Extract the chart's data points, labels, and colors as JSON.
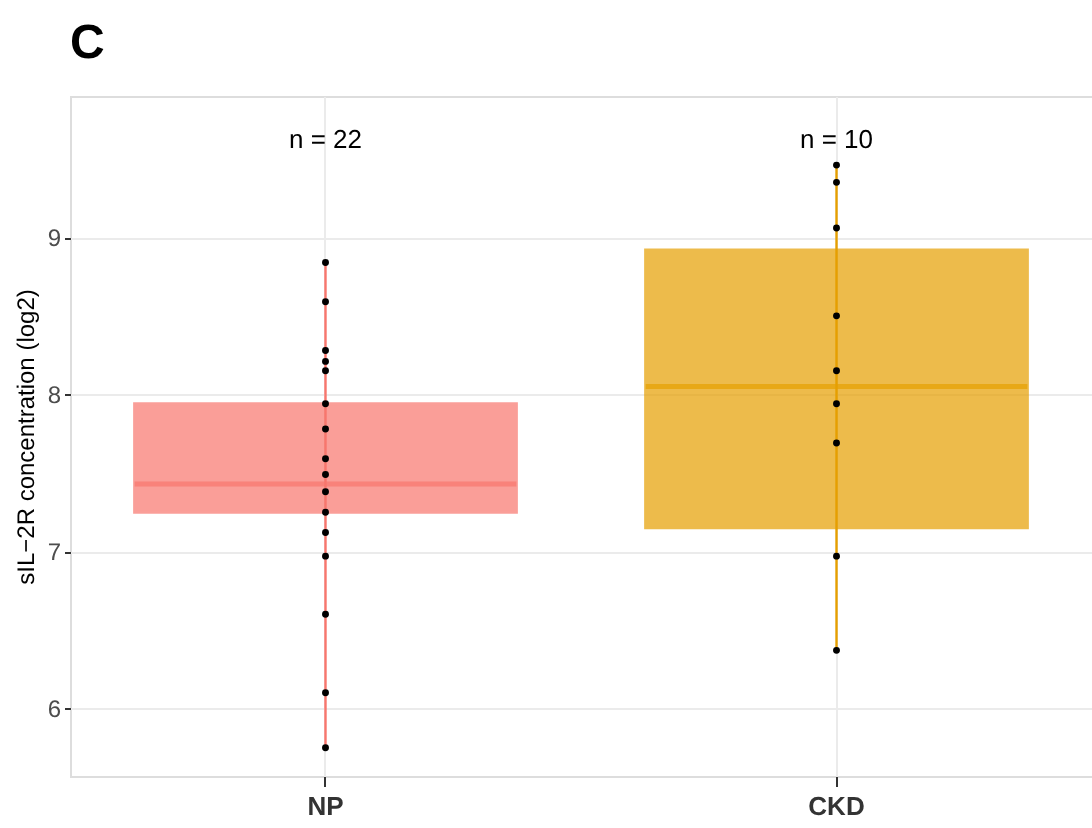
{
  "chart_data": {
    "type": "box",
    "title": "C",
    "ylabel": "sIL−2R concentration (log2)",
    "categories": [
      "NP",
      "CKD"
    ],
    "boxes": [
      {
        "low": 5.75,
        "q1": 7.25,
        "median": 7.43,
        "q3": 7.94,
        "high": 8.84
      },
      {
        "low": 6.37,
        "q1": 7.15,
        "median": 8.05,
        "q3": 8.92,
        "high": 9.46
      }
    ],
    "colors": [
      "#f8766d",
      "#e69f00"
    ],
    "series": [
      {
        "type": "scatter",
        "color": "#000000",
        "x": [
          "NP",
          "NP",
          "NP",
          "NP",
          "NP",
          "NP",
          "NP",
          "NP",
          "NP",
          "NP",
          "NP",
          "NP",
          "NP",
          "NP",
          "NP",
          "NP",
          "CKD",
          "CKD",
          "CKD",
          "CKD",
          "CKD",
          "CKD",
          "CKD",
          "CKD",
          "CKD"
        ],
        "values": [
          8.84,
          8.59,
          8.28,
          8.21,
          8.15,
          7.94,
          7.78,
          7.59,
          7.49,
          7.38,
          7.25,
          7.12,
          6.97,
          6.6,
          6.1,
          5.75,
          9.46,
          9.35,
          9.06,
          8.5,
          8.15,
          7.94,
          7.69,
          6.97,
          6.37
        ]
      }
    ],
    "annotations": [
      "n = 22",
      "n = 10"
    ],
    "ylim": [
      5.57,
      9.9
    ],
    "yticks": [
      6,
      7,
      8,
      9
    ],
    "grid": true,
    "legend": false
  }
}
